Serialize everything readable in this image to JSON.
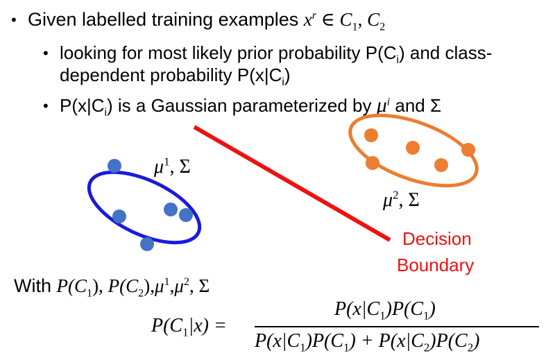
{
  "bullets": {
    "b1_prefix": "Given labelled training examples ",
    "b1_math_x": "x",
    "b1_math_r": "r",
    "b1_math_in": " ∈ ",
    "b1_math_c1": "C",
    "b1_sub1": "1",
    "b1_comma": ", ",
    "b1_math_c2": "C",
    "b1_sub2": "2",
    "b2_line1_a": "looking for most likely prior probability P(C",
    "b2_line1_sub": "i",
    "b2_line1_b": ") and class-",
    "b2_line2_a": "dependent probability P(x|C",
    "b2_line2_sub": "i",
    "b2_line2_b": ")",
    "b3_a": "P(x|C",
    "b3_sub": "i",
    "b3_b": ") is a Gaussian parameterized by ",
    "b3_mu": "μ",
    "b3_i": "i",
    "b3_c": " and Σ"
  },
  "labels": {
    "mu1": "μ",
    "mu1_sup": "1",
    "mu1_rest": ", Σ",
    "mu2": "μ",
    "mu2_sup": "2",
    "mu2_rest": ", Σ",
    "decision_line1": "Decision",
    "decision_line2": "Boundary"
  },
  "with_line": {
    "prefix": "With ",
    "p": "P",
    "c1": "(C",
    "s1": "1",
    "close1": "), ",
    "p2": "P",
    "c2": "(C",
    "s2": "2",
    "close2": "),",
    "mu1": "μ",
    "mu1_sup": "1",
    "comma": ",",
    "mu2": "μ",
    "mu2_sup": "2",
    "sigma": ", Σ"
  },
  "formula": {
    "lhs": "P(C",
    "lhs_sub": "1",
    "lhs_rest": "|x) =",
    "num_a": "P(x|C",
    "num_s1": "1",
    "num_b": ")P(C",
    "num_s2": "1",
    "num_c": ")",
    "den_a": "P(x|C",
    "den_s1": "1",
    "den_b": ")P(C",
    "den_s2": "1",
    "den_c": ") + P(x|C",
    "den_s3": "2",
    "den_d": ")P(C",
    "den_s4": "2",
    "den_e": ")"
  },
  "colors": {
    "class1": "#4472c4",
    "class1_ellipse": "#1a1adb",
    "class2": "#ed7d31",
    "boundary": "#ee1111"
  },
  "icons": [
    "bullet-dot"
  ]
}
